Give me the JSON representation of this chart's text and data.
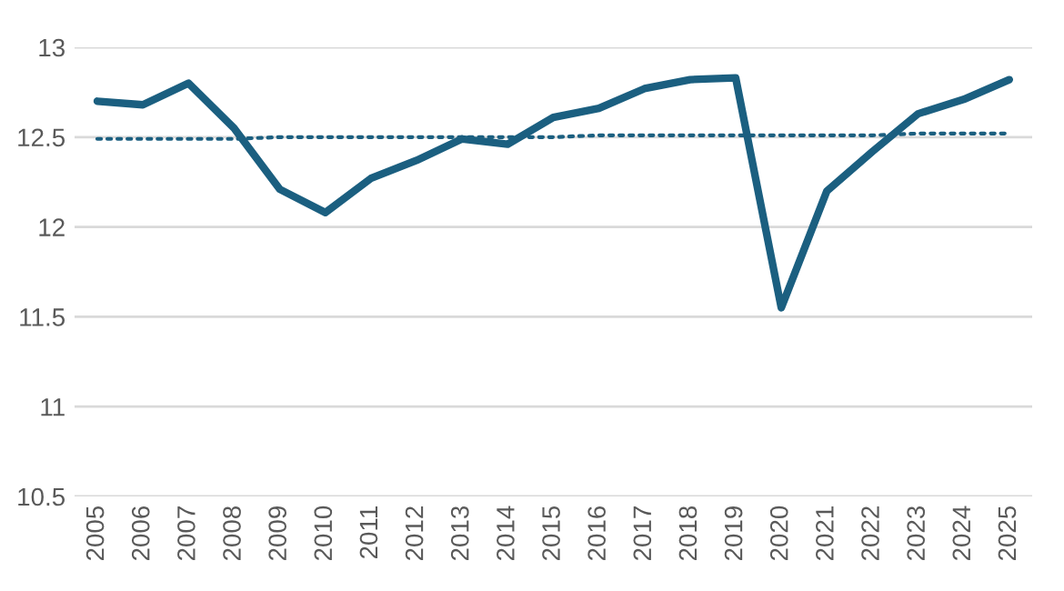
{
  "chart_data": {
    "type": "line",
    "categories": [
      "2005",
      "2006",
      "2007",
      "2008",
      "2009",
      "2010",
      "2011",
      "2012",
      "2013",
      "2014",
      "2015",
      "2016",
      "2017",
      "2018",
      "2019",
      "2020",
      "2021",
      "2022",
      "2023",
      "2024",
      "2025"
    ],
    "series": [
      {
        "color": "#1b5f80",
        "line_style": "solid",
        "values": [
          12.7,
          12.68,
          12.8,
          12.55,
          12.21,
          12.08,
          12.27,
          12.37,
          12.49,
          12.46,
          12.61,
          12.66,
          12.77,
          12.82,
          12.83,
          11.55,
          12.2,
          12.42,
          12.63,
          12.71,
          12.82
        ]
      },
      {
        "type": "line",
        "color": "#1b5f80",
        "line_style": "dotted",
        "values": [
          12.49,
          12.49,
          12.49,
          12.49,
          12.5,
          12.5,
          12.5,
          12.5,
          12.5,
          12.5,
          12.5,
          12.51,
          12.51,
          12.51,
          12.51,
          12.51,
          12.51,
          12.51,
          12.52,
          12.52,
          12.52
        ]
      }
    ],
    "ylim": [
      10.5,
      13
    ],
    "yticks": [
      10.5,
      11,
      11.5,
      12,
      12.5,
      13
    ],
    "grid": "y",
    "legend": false
  }
}
